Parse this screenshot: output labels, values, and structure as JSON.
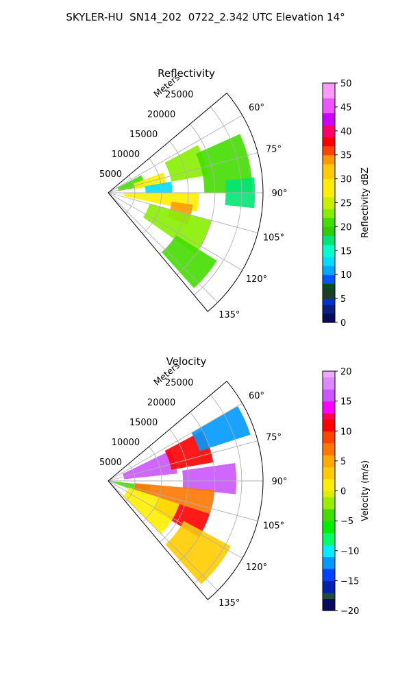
{
  "figure": {
    "title": "SKYLER-HU  SN14_202  0722_2.342 UTC Elevation 14°"
  },
  "chart_data": [
    {
      "type": "heatmap",
      "subtype": "polar-sector (PPI)",
      "title": "Reflectivity",
      "radial_label": "Meters",
      "radial_ticks": [
        "5000",
        "10000",
        "15000",
        "20000",
        "25000"
      ],
      "angular_ticks": [
        "60°",
        "75°",
        "90°",
        "105°",
        "120°",
        "135°"
      ],
      "theta_range_deg": [
        50,
        140
      ],
      "r_range_m": [
        0,
        29000
      ],
      "colorbar": {
        "label": "Reflectivity dBZ",
        "range": [
          0,
          50
        ],
        "ticks": [
          "0",
          "5",
          "10",
          "15",
          "20",
          "25",
          "30",
          "35",
          "40",
          "45",
          "50"
        ]
      },
      "cells": [
        {
          "range_m": [
            2000,
            7000
          ],
          "az_deg": [
            62,
            80
          ],
          "dbz": 20
        },
        {
          "range_m": [
            5000,
            11000
          ],
          "az_deg": [
            70,
            82
          ],
          "dbz": 27
        },
        {
          "range_m": [
            12000,
            19000
          ],
          "az_deg": [
            62,
            80
          ],
          "dbz": 23
        },
        {
          "range_m": [
            18000,
            27000
          ],
          "az_deg": [
            66,
            90
          ],
          "dbz": 20
        },
        {
          "range_m": [
            7000,
            12000
          ],
          "az_deg": [
            80,
            90
          ],
          "dbz": 13
        },
        {
          "range_m": [
            3000,
            17000
          ],
          "az_deg": [
            90,
            102
          ],
          "dbz": 27
        },
        {
          "range_m": [
            12000,
            16000
          ],
          "az_deg": [
            98,
            112
          ],
          "dbz": 33
        },
        {
          "range_m": [
            8000,
            20000
          ],
          "az_deg": [
            105,
            125
          ],
          "dbz": 22
        },
        {
          "range_m": [
            15000,
            24000
          ],
          "az_deg": [
            122,
            138
          ],
          "dbz": 20
        },
        {
          "range_m": [
            22000,
            27500
          ],
          "az_deg": [
            84,
            96
          ],
          "dbz": 17
        }
      ]
    },
    {
      "type": "heatmap",
      "subtype": "polar-sector (PPI)",
      "title": "Velocity",
      "radial_label": "Meters",
      "radial_ticks": [
        "5000",
        "10000",
        "15000",
        "20000",
        "25000"
      ],
      "angular_ticks": [
        "60°",
        "75°",
        "90°",
        "105°",
        "120°",
        "135°"
      ],
      "theta_range_deg": [
        50,
        140
      ],
      "r_range_m": [
        0,
        29000
      ],
      "colorbar": {
        "label": "Velocity (m/s)",
        "range": [
          -20,
          20
        ],
        "ticks": [
          "−20",
          "−15",
          "−10",
          "−5",
          "0",
          "5",
          "10",
          "15",
          "20"
        ]
      },
      "cells": [
        {
          "range_m": [
            3000,
            13000
          ],
          "az_deg": [
            64,
            84
          ],
          "ms": 16
        },
        {
          "range_m": [
            12000,
            20000
          ],
          "az_deg": [
            62,
            80
          ],
          "ms": 10
        },
        {
          "range_m": [
            14000,
            24000
          ],
          "az_deg": [
            82,
            96
          ],
          "ms": 15
        },
        {
          "range_m": [
            18000,
            28000
          ],
          "az_deg": [
            60,
            72
          ],
          "ms": -12
        },
        {
          "range_m": [
            0,
            8000
          ],
          "az_deg": [
            96,
            110
          ],
          "ms": -4
        },
        {
          "range_m": [
            5000,
            20000
          ],
          "az_deg": [
            95,
            108
          ],
          "ms": 6
        },
        {
          "range_m": [
            10000,
            20000
          ],
          "az_deg": [
            108,
            122
          ],
          "ms": 10
        },
        {
          "range_m": [
            16000,
            26000
          ],
          "az_deg": [
            118,
            138
          ],
          "ms": 3
        },
        {
          "range_m": [
            4000,
            14000
          ],
          "az_deg": [
            108,
            135
          ],
          "ms": 1
        }
      ]
    }
  ]
}
